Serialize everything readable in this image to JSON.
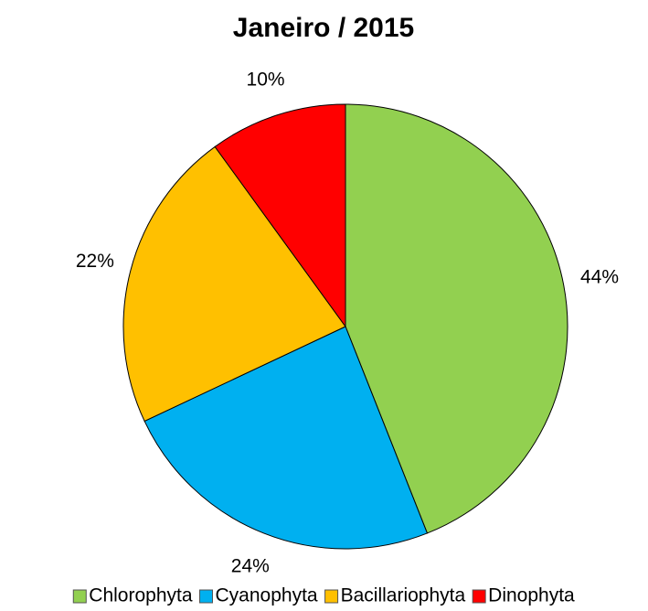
{
  "chart_data": {
    "type": "pie",
    "title": "Janeiro / 2015",
    "categories": [
      "Chlorophyta",
      "Cyanophyta",
      "Bacillariophyta",
      "Dinophyta"
    ],
    "values": [
      44,
      24,
      22,
      10
    ],
    "value_labels": [
      "44%",
      "24%",
      "22%",
      "10%"
    ],
    "colors": [
      "#92d050",
      "#00b0f0",
      "#ffc000",
      "#ff0000"
    ],
    "legend": "bottom"
  }
}
